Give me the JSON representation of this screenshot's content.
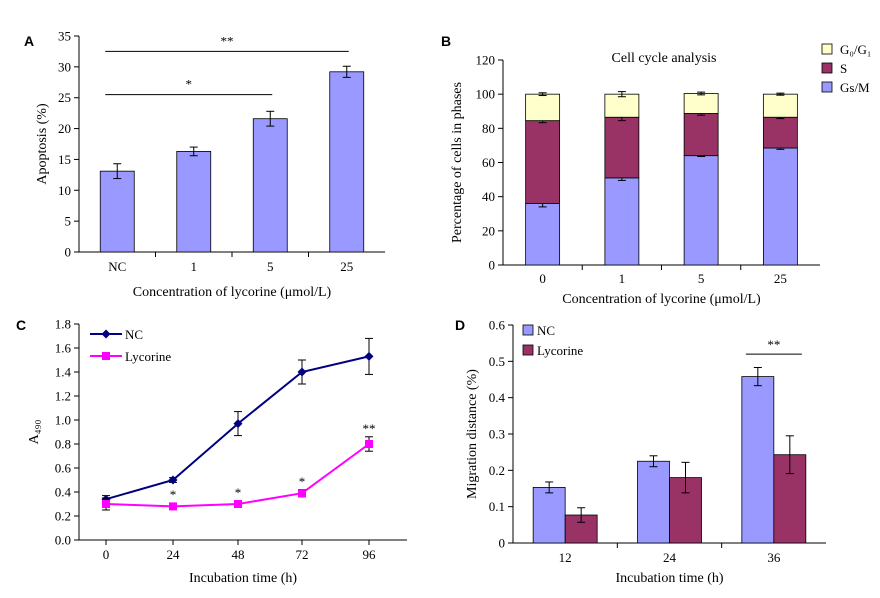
{
  "chart_data": [
    {
      "panel": "A",
      "type": "bar",
      "categories": [
        "NC",
        "1",
        "5",
        "25"
      ],
      "values": [
        13.1,
        16.3,
        21.6,
        29.2
      ],
      "errors": [
        1.2,
        0.7,
        1.2,
        0.9
      ],
      "xlabel": "Concentration of lycorine (μmol/L)",
      "ylabel": "Apoptosis (%)",
      "ylim": [
        0,
        35
      ],
      "yticks": [
        "0",
        "5",
        "10",
        "15",
        "20",
        "25",
        "30",
        "35"
      ],
      "color": "#9999ff",
      "annotations": [
        {
          "text": "*",
          "from": 0,
          "to": 2,
          "level": 25.5
        },
        {
          "text": "**",
          "from": 0,
          "to": 3,
          "level": 32.5
        }
      ]
    },
    {
      "panel": "B",
      "type": "bar",
      "stacked": true,
      "title": "Cell cycle analysis",
      "categories": [
        "0",
        "1",
        "5",
        "25"
      ],
      "xlabel": "Concentration of lycorine (μmol/L)",
      "ylabel": "Percentage of cells in phases",
      "ylim": [
        0,
        120
      ],
      "yticks": [
        "0",
        "20",
        "40",
        "60",
        "80",
        "100",
        "120"
      ],
      "legend_position": "top-right",
      "series": [
        {
          "name": "Gs/M",
          "values": [
            36,
            51,
            64,
            68.5
          ],
          "errors": [
            2,
            1.5,
            0.5,
            0.8
          ],
          "color": "#9999ff"
        },
        {
          "name": "S",
          "values": [
            48.5,
            35.5,
            24.7,
            18
          ],
          "errors": [
            1.2,
            2,
            1,
            0.8
          ],
          "color": "#993366"
        },
        {
          "name": "G₀/G₁",
          "values": [
            15.5,
            13.5,
            11.7,
            13.5
          ],
          "errors": [
            0.8,
            1.5,
            0.8,
            0.6
          ],
          "color": "#ffffcc"
        }
      ]
    },
    {
      "panel": "C",
      "type": "line",
      "x": [
        0,
        24,
        48,
        72,
        96
      ],
      "xticks": [
        "0",
        "24",
        "48",
        "72",
        "96"
      ],
      "xlabel": "Incubation time (h)",
      "ylabel": "A₄₉₀",
      "ylim": [
        0,
        1.8
      ],
      "yticks": [
        "0.0",
        "0.2",
        "0.4",
        "0.6",
        "0.8",
        "1.0",
        "1.2",
        "1.4",
        "1.6",
        "1.8"
      ],
      "legend_position": "top-left",
      "series": [
        {
          "name": "NC",
          "values": [
            0.34,
            0.5,
            0.97,
            1.4,
            1.53
          ],
          "errors": [
            0.03,
            0.02,
            0.1,
            0.1,
            0.15
          ],
          "color": "#000080",
          "marker": "diamond"
        },
        {
          "name": "Lycorine",
          "values": [
            0.3,
            0.28,
            0.3,
            0.39,
            0.8
          ],
          "errors": [
            0.05,
            0.02,
            0.02,
            0.03,
            0.06
          ],
          "color": "#ff00ff",
          "marker": "square"
        }
      ],
      "annotations": [
        {
          "text": "*",
          "x": 24,
          "y": 0.34
        },
        {
          "text": "*",
          "x": 48,
          "y": 0.36
        },
        {
          "text": "*",
          "x": 72,
          "y": 0.45
        },
        {
          "text": "**",
          "x": 96,
          "y": 0.89
        }
      ]
    },
    {
      "panel": "D",
      "type": "bar",
      "categories": [
        "12",
        "24",
        "36"
      ],
      "xlabel": "Incubation time (h)",
      "ylabel": "Migration distance (%)",
      "ylim": [
        0,
        0.6
      ],
      "yticks": [
        "0",
        "0.1",
        "0.2",
        "0.3",
        "0.4",
        "0.5",
        "0.6"
      ],
      "legend_position": "top-left",
      "series": [
        {
          "name": "NC",
          "values": [
            0.153,
            0.225,
            0.458
          ],
          "errors": [
            0.015,
            0.015,
            0.025
          ],
          "color": "#9999ff"
        },
        {
          "name": "Lycorine",
          "values": [
            0.077,
            0.18,
            0.243
          ],
          "errors": [
            0.02,
            0.042,
            0.052
          ],
          "color": "#993366"
        }
      ],
      "annotations": [
        {
          "text": "**",
          "category": 2,
          "level": 0.52
        }
      ]
    }
  ]
}
